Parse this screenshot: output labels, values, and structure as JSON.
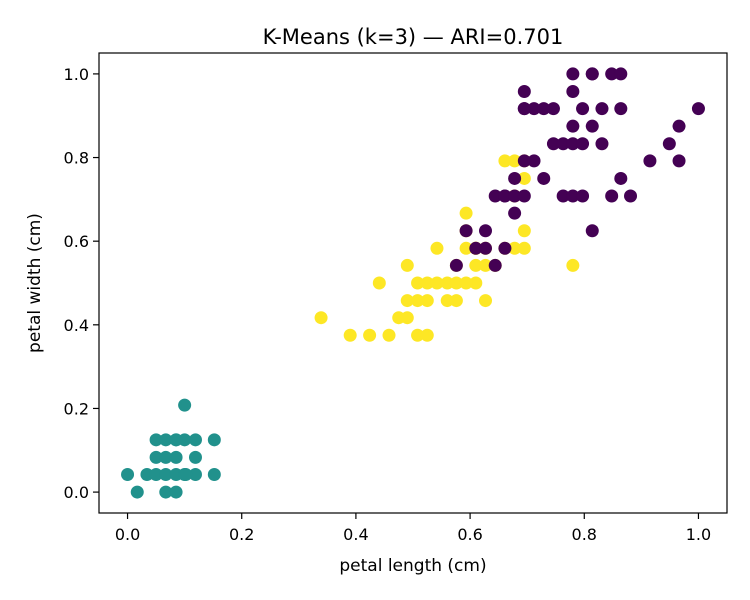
{
  "chart_data": {
    "type": "scatter",
    "title": "K-Means (k=3) — ARI=0.701",
    "xlabel": "petal length (cm)",
    "ylabel": "petal width (cm)",
    "xlim": [
      -0.05,
      1.05
    ],
    "ylim": [
      -0.05,
      1.05
    ],
    "xticks": [
      0.0,
      0.2,
      0.4,
      0.6,
      0.8,
      1.0
    ],
    "yticks": [
      0.0,
      0.2,
      0.4,
      0.6,
      0.8,
      1.0
    ],
    "tick_labels_x": [
      "0.0",
      "0.2",
      "0.4",
      "0.6",
      "0.8",
      "1.0"
    ],
    "tick_labels_y": [
      "0.0",
      "0.2",
      "0.4",
      "0.6",
      "0.8",
      "1.0"
    ],
    "grid": false,
    "legend": "none",
    "series": [
      {
        "color": "#21918c",
        "x": [
          0.0,
          0.017,
          0.034,
          0.05,
          0.05,
          0.05,
          0.067,
          0.067,
          0.067,
          0.067,
          0.085,
          0.085,
          0.085,
          0.085,
          0.1,
          0.1,
          0.1,
          0.119,
          0.119,
          0.119,
          0.152,
          0.152,
          0.085,
          0.102
        ],
        "y": [
          0.042,
          0.0,
          0.042,
          0.042,
          0.083,
          0.125,
          0.0,
          0.042,
          0.083,
          0.125,
          0.0,
          0.042,
          0.083,
          0.125,
          0.042,
          0.125,
          0.208,
          0.042,
          0.083,
          0.125,
          0.125,
          0.042,
          0.125,
          0.042
        ],
        "marker_color": "#21918c"
      },
      {
        "color": "#fde725",
        "x": [
          0.339,
          0.39,
          0.424,
          0.441,
          0.458,
          0.475,
          0.49,
          0.49,
          0.49,
          0.508,
          0.508,
          0.508,
          0.525,
          0.525,
          0.525,
          0.542,
          0.542,
          0.56,
          0.56,
          0.576,
          0.576,
          0.576,
          0.593,
          0.593,
          0.593,
          0.61,
          0.61,
          0.61,
          0.627,
          0.627,
          0.627,
          0.644,
          0.661,
          0.661,
          0.678,
          0.678,
          0.678,
          0.695,
          0.695,
          0.695,
          0.695,
          0.78,
          0.593,
          0.61
        ],
        "y": [
          0.417,
          0.375,
          0.375,
          0.5,
          0.375,
          0.417,
          0.458,
          0.542,
          0.417,
          0.375,
          0.458,
          0.5,
          0.375,
          0.458,
          0.5,
          0.5,
          0.583,
          0.5,
          0.458,
          0.458,
          0.5,
          0.542,
          0.583,
          0.625,
          0.667,
          0.5,
          0.542,
          0.583,
          0.458,
          0.542,
          0.583,
          0.542,
          0.583,
          0.792,
          0.583,
          0.708,
          0.792,
          0.583,
          0.625,
          0.75,
          0.792,
          0.542,
          0.5,
          0.583
        ]
      },
      {
        "color": "#440154",
        "x": [
          0.576,
          0.593,
          0.61,
          0.627,
          0.627,
          0.644,
          0.644,
          0.661,
          0.661,
          0.661,
          0.678,
          0.678,
          0.678,
          0.695,
          0.695,
          0.695,
          0.695,
          0.712,
          0.712,
          0.729,
          0.729,
          0.746,
          0.746,
          0.763,
          0.763,
          0.78,
          0.78,
          0.78,
          0.78,
          0.797,
          0.797,
          0.797,
          0.814,
          0.814,
          0.814,
          0.831,
          0.831,
          0.848,
          0.848,
          0.864,
          0.864,
          0.864,
          0.881,
          0.915,
          0.949,
          0.966,
          0.966,
          1.0,
          0.814,
          0.78,
          0.695
        ],
        "y": [
          0.542,
          0.625,
          0.583,
          0.583,
          0.625,
          0.542,
          0.708,
          0.583,
          0.708,
          0.708,
          0.667,
          0.75,
          0.708,
          0.708,
          0.792,
          0.917,
          0.958,
          0.792,
          0.917,
          0.917,
          0.75,
          0.833,
          0.917,
          0.708,
          0.833,
          0.708,
          0.833,
          0.875,
          0.958,
          0.708,
          0.833,
          0.917,
          0.625,
          0.875,
          1.0,
          0.833,
          0.917,
          0.708,
          1.0,
          0.75,
          0.917,
          1.0,
          0.708,
          0.792,
          0.833,
          0.792,
          0.875,
          0.917,
          1.0,
          1.0,
          0.917
        ]
      }
    ]
  }
}
